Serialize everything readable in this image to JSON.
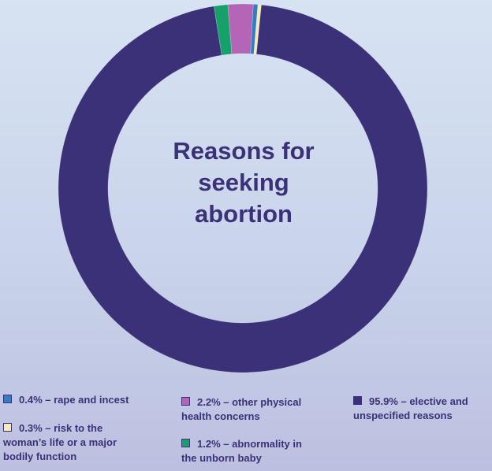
{
  "chart_data": {
    "type": "pie",
    "title_lines": [
      "Reasons for",
      "seeking",
      "abortion"
    ],
    "unit": "%",
    "slices": [
      {
        "label": "rape and incest",
        "value": 0.4,
        "color": "#2f7fc4",
        "legend_line1": "0.4% – rape and incest",
        "legend_line2": "",
        "legend_line3": ""
      },
      {
        "label": "risk to the woman's life or a major bodily function",
        "value": 0.3,
        "color": "#f8ecb4",
        "legend_line1": "0.3% – risk to the",
        "legend_line2": "woman’s life or a major",
        "legend_line3": "bodily function"
      },
      {
        "label": "other physical health concerns",
        "value": 2.2,
        "color": "#b565b5",
        "legend_line1": "2.2% – other physical",
        "legend_line2": "health concerns",
        "legend_line3": ""
      },
      {
        "label": "abnormality in the unborn baby",
        "value": 1.2,
        "color": "#16a06a",
        "legend_line1": "1.2% – abnormality in",
        "legend_line2": "the unborn baby",
        "legend_line3": ""
      },
      {
        "label": "elective and unspecified reasons",
        "value": 95.9,
        "color": "#3b3178",
        "legend_line1": "95.9% – elective and",
        "legend_line2": "unspecified reasons",
        "legend_line3": ""
      }
    ],
    "legend_placement": "bottom"
  },
  "colors": {
    "text": "#3b3178",
    "background_top": "#d7e3f3",
    "background_bottom": "#bcc0e0"
  }
}
